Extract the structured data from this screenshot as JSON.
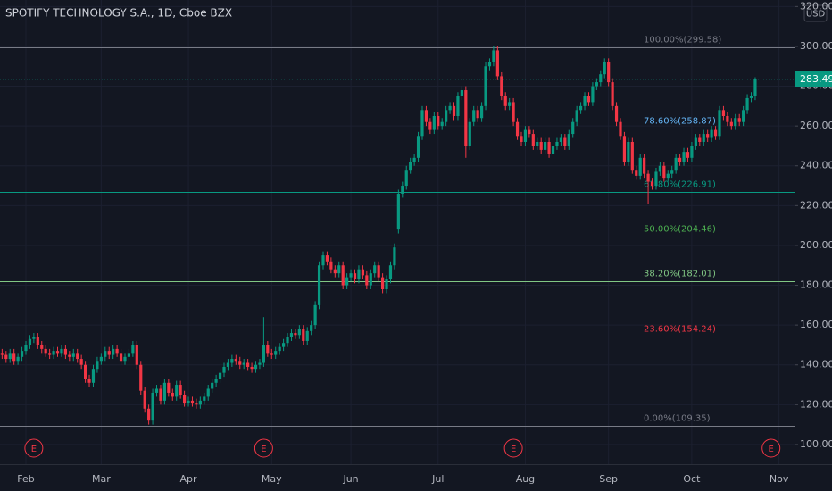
{
  "chart_data": {
    "type": "candlestick",
    "title": "SPOTIFY TECHNOLOGY S.A., 1D, Cboe BZX",
    "currency": "USD",
    "up_color": "#089981",
    "down_color": "#f23645",
    "xlim": [
      -6.53,
      193.92
    ],
    "xticks": [
      {
        "value": 0,
        "label": "Feb"
      },
      {
        "value": 19,
        "label": "Mar"
      },
      {
        "value": 41,
        "label": "Apr"
      },
      {
        "value": 62,
        "label": "May"
      },
      {
        "value": 82,
        "label": "Jun"
      },
      {
        "value": 104,
        "label": "Jul"
      },
      {
        "value": 126,
        "label": "Aug"
      },
      {
        "value": 147,
        "label": "Sep"
      },
      {
        "value": 168,
        "label": "Oct"
      },
      {
        "value": 190,
        "label": "Nov"
      }
    ],
    "ylim": [
      90.1,
      323.3
    ],
    "yticks": [
      {
        "value": 100,
        "label": "100.00"
      },
      {
        "value": 120,
        "label": "120.00"
      },
      {
        "value": 140,
        "label": "140.00"
      },
      {
        "value": 160,
        "label": "160.00"
      },
      {
        "value": 180,
        "label": "180.00"
      },
      {
        "value": 200,
        "label": "200.00"
      },
      {
        "value": 220,
        "label": "220.00"
      },
      {
        "value": 240,
        "label": "240.00"
      },
      {
        "value": 260,
        "label": "260.00"
      },
      {
        "value": 280,
        "label": "280.00"
      },
      {
        "value": 300,
        "label": "300.00"
      },
      {
        "value": 320,
        "label": "320.00"
      }
    ],
    "fib_levels": [
      {
        "value": 299.58,
        "label": "100.00%(299.58)",
        "color": "#787b86"
      },
      {
        "value": 258.87,
        "label": "78.60%(258.87)",
        "color": "#64b5f6"
      },
      {
        "value": 226.91,
        "label": "61.80%(226.91)",
        "color": "#089981"
      },
      {
        "value": 204.46,
        "label": "50.00%(204.46)",
        "color": "#4caf50"
      },
      {
        "value": 182.01,
        "label": "38.20%(182.01)",
        "color": "#81c784"
      },
      {
        "value": 154.24,
        "label": "23.60%(154.24)",
        "color": "#f23645"
      },
      {
        "value": 109.35,
        "label": "0.00%(109.35)",
        "color": "#787b86"
      }
    ],
    "earnings": [
      {
        "x": 2,
        "label": "E"
      },
      {
        "x": 60,
        "label": "E"
      },
      {
        "x": 123,
        "label": "E"
      },
      {
        "x": 188,
        "label": "E"
      }
    ],
    "x": [
      -6,
      -5,
      -4,
      -3,
      -2,
      -1,
      0,
      1,
      2,
      3,
      4,
      5,
      6,
      7,
      8,
      9,
      10,
      11,
      12,
      13,
      14,
      15,
      16,
      17,
      18,
      19,
      20,
      21,
      22,
      23,
      24,
      25,
      26,
      27,
      28,
      29,
      30,
      31,
      32,
      33,
      34,
      35,
      36,
      37,
      38,
      39,
      40,
      41,
      42,
      43,
      44,
      45,
      46,
      47,
      48,
      49,
      50,
      51,
      52,
      53,
      54,
      55,
      56,
      57,
      58,
      59,
      60,
      61,
      62,
      63,
      64,
      65,
      66,
      67,
      68,
      69,
      70,
      71,
      72,
      73,
      74,
      75,
      76,
      77,
      78,
      79,
      80,
      81,
      82,
      83,
      84,
      85,
      86,
      87,
      88,
      89,
      90,
      91,
      92,
      93,
      94,
      95,
      96,
      97,
      98,
      99,
      100,
      101,
      102,
      103,
      104,
      105,
      106,
      107,
      108,
      109,
      110,
      111,
      112,
      113,
      114,
      115,
      116,
      117,
      118,
      119,
      120,
      121,
      122,
      123,
      124,
      125,
      126,
      127,
      128,
      129,
      130,
      131,
      132,
      133,
      134,
      135,
      136,
      137,
      138,
      139,
      140,
      141,
      142,
      143,
      144,
      145,
      146,
      147,
      148,
      149,
      150,
      151,
      152,
      153,
      154,
      155,
      156,
      157,
      158,
      159,
      160,
      161,
      162,
      163,
      164,
      165,
      166,
      167,
      168,
      169,
      170,
      171,
      172,
      173,
      174,
      175,
      176,
      177,
      178,
      179,
      180,
      181,
      182,
      183,
      184
    ],
    "open": [
      146,
      145,
      143,
      146,
      142,
      144,
      147,
      150,
      153,
      154,
      150,
      148,
      146,
      145,
      147,
      146,
      148,
      145,
      144,
      146,
      143,
      140,
      133,
      131,
      138,
      142,
      144,
      147,
      145,
      148,
      146,
      142,
      144,
      146,
      150,
      140,
      127,
      118,
      112,
      126,
      128,
      122,
      131,
      126,
      124,
      130,
      125,
      121,
      122,
      121,
      120,
      122,
      124,
      128,
      131,
      133,
      136,
      139,
      141,
      143,
      142,
      140,
      141,
      139,
      138,
      140,
      141,
      150,
      146,
      145,
      147,
      149,
      151,
      154,
      156,
      155,
      158,
      152,
      157,
      160,
      170,
      190,
      195,
      192,
      188,
      186,
      190,
      180,
      184,
      186,
      183,
      188,
      185,
      180,
      186,
      190,
      184,
      178,
      183,
      190,
      208,
      226,
      230,
      238,
      242,
      244,
      255,
      268,
      262,
      258,
      265,
      260,
      262,
      268,
      270,
      265,
      275,
      278,
      250,
      262,
      268,
      264,
      270,
      290,
      292,
      298,
      285,
      275,
      270,
      272,
      262,
      255,
      252,
      258,
      256,
      250,
      252,
      248,
      252,
      246,
      250,
      252,
      254,
      250,
      256,
      262,
      268,
      270,
      275,
      272,
      280,
      282,
      286,
      292,
      282,
      270,
      262,
      255,
      242,
      252,
      238,
      235,
      244,
      236,
      232,
      230,
      237,
      240,
      234,
      236,
      238,
      244,
      242,
      247,
      244,
      250,
      254,
      252,
      256,
      254,
      258,
      255,
      268,
      265,
      262,
      260,
      264,
      262,
      268,
      274,
      275
    ],
    "high": [
      148,
      147,
      148,
      148,
      146,
      149,
      152,
      155,
      156,
      156,
      152,
      150,
      148,
      149,
      149,
      150,
      150,
      147,
      148,
      148,
      145,
      142,
      135,
      140,
      144,
      146,
      149,
      149,
      150,
      150,
      148,
      146,
      148,
      152,
      152,
      142,
      129,
      120,
      128,
      130,
      130,
      133,
      133,
      128,
      132,
      132,
      127,
      124,
      124,
      123,
      124,
      126,
      130,
      133,
      135,
      138,
      141,
      143,
      145,
      145,
      144,
      143,
      143,
      141,
      142,
      143,
      164,
      152,
      148,
      149,
      151,
      153,
      156,
      158,
      158,
      160,
      160,
      159,
      162,
      172,
      192,
      197,
      197,
      194,
      190,
      192,
      192,
      186,
      188,
      188,
      190,
      190,
      187,
      188,
      192,
      192,
      186,
      185,
      192,
      201,
      228,
      232,
      240,
      244,
      246,
      257,
      270,
      270,
      264,
      267,
      267,
      264,
      270,
      272,
      272,
      277,
      280,
      280,
      264,
      270,
      270,
      272,
      292,
      294,
      300,
      300,
      287,
      277,
      274,
      274,
      264,
      257,
      260,
      260,
      258,
      254,
      254,
      254,
      254,
      252,
      254,
      256,
      256,
      258,
      264,
      270,
      272,
      277,
      277,
      282,
      284,
      288,
      294,
      294,
      284,
      272,
      264,
      257,
      254,
      254,
      240,
      246,
      246,
      238,
      234,
      239,
      242,
      242,
      238,
      240,
      246,
      246,
      249,
      249,
      252,
      256,
      256,
      258,
      258,
      260,
      260,
      270,
      270,
      267,
      264,
      266,
      266,
      270,
      276,
      277,
      284.5
    ],
    "low": [
      143,
      141,
      141,
      140,
      140,
      142,
      145,
      148,
      151,
      148,
      146,
      144,
      143,
      143,
      144,
      144,
      143,
      142,
      142,
      141,
      138,
      131,
      129,
      129,
      136,
      140,
      142,
      143,
      143,
      144,
      140,
      140,
      142,
      144,
      138,
      125,
      116,
      110,
      110,
      124,
      120,
      120,
      124,
      122,
      122,
      123,
      119,
      119,
      119,
      118,
      118,
      120,
      122,
      126,
      129,
      131,
      134,
      137,
      139,
      140,
      138,
      138,
      137,
      136,
      136,
      138,
      139,
      144,
      143,
      143,
      145,
      147,
      149,
      152,
      153,
      153,
      150,
      150,
      155,
      158,
      168,
      188,
      190,
      186,
      184,
      184,
      178,
      178,
      182,
      181,
      181,
      183,
      178,
      178,
      184,
      182,
      176,
      176,
      181,
      188,
      206,
      224,
      228,
      236,
      240,
      242,
      253,
      260,
      256,
      256,
      258,
      258,
      260,
      266,
      263,
      263,
      273,
      244,
      248,
      260,
      262,
      262,
      268,
      288,
      290,
      283,
      273,
      268,
      268,
      260,
      253,
      250,
      250,
      254,
      248,
      248,
      246,
      246,
      244,
      244,
      248,
      250,
      248,
      248,
      254,
      260,
      266,
      268,
      270,
      270,
      278,
      280,
      284,
      280,
      268,
      260,
      253,
      240,
      240,
      236,
      233,
      233,
      234,
      221,
      228,
      228,
      235,
      232,
      232,
      234,
      236,
      240,
      240,
      242,
      242,
      248,
      250,
      250,
      252,
      252,
      253,
      253,
      263,
      260,
      258,
      258,
      260,
      260,
      266,
      272,
      273
    ],
    "close": [
      145,
      143,
      146,
      142,
      144,
      147,
      150,
      153,
      154,
      150,
      148,
      146,
      145,
      147,
      146,
      148,
      145,
      144,
      146,
      143,
      140,
      133,
      131,
      138,
      142,
      144,
      147,
      145,
      148,
      146,
      142,
      144,
      146,
      150,
      140,
      127,
      118,
      112,
      126,
      128,
      122,
      131,
      126,
      124,
      130,
      125,
      121,
      122,
      121,
      120,
      122,
      124,
      128,
      131,
      133,
      136,
      139,
      141,
      143,
      142,
      140,
      141,
      139,
      138,
      140,
      141,
      150,
      146,
      145,
      147,
      149,
      151,
      154,
      156,
      155,
      158,
      152,
      157,
      160,
      170,
      190,
      195,
      192,
      188,
      186,
      190,
      180,
      184,
      186,
      183,
      188,
      185,
      180,
      186,
      190,
      184,
      178,
      183,
      190,
      199,
      226,
      230,
      238,
      242,
      244,
      255,
      268,
      262,
      258,
      265,
      260,
      262,
      268,
      270,
      265,
      275,
      278,
      250,
      262,
      268,
      264,
      270,
      290,
      292,
      298,
      285,
      275,
      270,
      272,
      262,
      255,
      252,
      258,
      256,
      250,
      252,
      248,
      252,
      246,
      250,
      252,
      254,
      250,
      256,
      262,
      268,
      270,
      275,
      272,
      280,
      282,
      286,
      292,
      282,
      270,
      262,
      255,
      242,
      252,
      238,
      235,
      244,
      236,
      232,
      230,
      237,
      240,
      234,
      236,
      238,
      244,
      242,
      247,
      244,
      250,
      254,
      252,
      256,
      254,
      258,
      255,
      268,
      265,
      262,
      260,
      264,
      262,
      268,
      274,
      275,
      283.49
    ]
  }
}
